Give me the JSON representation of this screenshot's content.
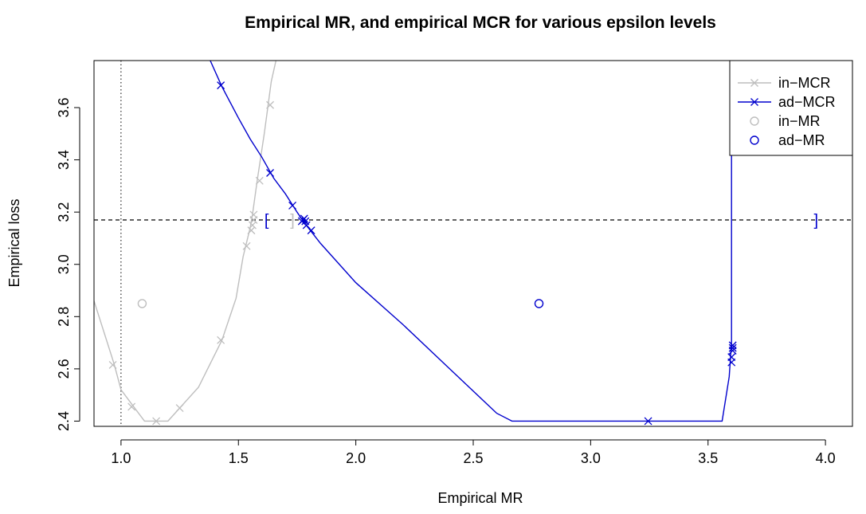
{
  "chart_data": {
    "type": "line",
    "title": "Empirical MR, and empirical MCR for various epsilon levels",
    "xlabel": "Empirical MR",
    "ylabel": "Empirical loss",
    "xlim": [
      0.885,
      4.115
    ],
    "ylim": [
      2.38,
      3.78
    ],
    "xticks": [
      1.0,
      1.5,
      2.0,
      2.5,
      3.0,
      3.5,
      4.0
    ],
    "xtick_labels": [
      "1.0",
      "1.5",
      "2.0",
      "2.5",
      "3.0",
      "3.5",
      "4.0"
    ],
    "yticks": [
      2.4,
      2.6,
      2.8,
      3.0,
      3.2,
      3.4,
      3.6
    ],
    "ytick_labels": [
      "2.4",
      "2.6",
      "2.8",
      "3.0",
      "3.2",
      "3.4",
      "3.6"
    ],
    "grid": false,
    "legend_position": "top-right",
    "colors": {
      "in": "#bebebe",
      "ad": "#0000cd",
      "ref": "#000000"
    },
    "reference_lines": {
      "vertical_dotted_x": 1.0,
      "horizontal_dashed_y": 3.17
    },
    "series": [
      {
        "name": "in-MCR",
        "kind": "line",
        "color": "#bebebe",
        "x": [
          0.885,
          0.97,
          1.0,
          1.05,
          1.1,
          1.15,
          1.2,
          1.25,
          1.33,
          1.43,
          1.49,
          1.52,
          1.55,
          1.56,
          1.58,
          1.61,
          1.64,
          1.66
        ],
        "y": [
          2.86,
          2.62,
          2.52,
          2.46,
          2.4,
          2.4,
          2.4,
          2.45,
          2.53,
          2.71,
          2.87,
          3.03,
          3.14,
          3.19,
          3.32,
          3.5,
          3.7,
          3.78
        ]
      },
      {
        "name": "in-MCR markers",
        "kind": "markers",
        "color": "#bebebe",
        "x": [
          0.965,
          1.045,
          1.15,
          1.25,
          1.425,
          1.535,
          1.555,
          1.56,
          1.565,
          1.565,
          1.59,
          1.635
        ],
        "y": [
          2.615,
          2.455,
          2.4,
          2.45,
          2.71,
          3.07,
          3.13,
          3.15,
          3.17,
          3.19,
          3.32,
          3.61
        ]
      },
      {
        "name": "ad-MCR",
        "kind": "line",
        "color": "#0000cd",
        "x": [
          1.38,
          1.43,
          1.5,
          1.55,
          1.6,
          1.65,
          1.7,
          1.75,
          1.78,
          1.85,
          2.0,
          2.2,
          2.4,
          2.6,
          2.665,
          3.56,
          3.59,
          3.6,
          3.6
        ],
        "y": [
          3.78,
          3.68,
          3.56,
          3.48,
          3.41,
          3.33,
          3.27,
          3.2,
          3.16,
          3.08,
          2.93,
          2.77,
          2.6,
          2.43,
          2.4,
          2.4,
          2.57,
          2.7,
          3.58
        ]
      },
      {
        "name": "ad-MCR markers",
        "kind": "markers",
        "color": "#0000cd",
        "x": [
          1.425,
          1.635,
          1.73,
          1.77,
          1.775,
          1.78,
          1.785,
          1.79,
          1.81,
          3.245,
          3.6,
          3.6,
          3.605,
          3.605,
          3.605
        ],
        "y": [
          3.685,
          3.35,
          3.225,
          3.165,
          3.17,
          3.175,
          3.165,
          3.15,
          3.13,
          2.4,
          2.625,
          2.645,
          2.67,
          2.68,
          2.69
        ]
      },
      {
        "name": "in-MR",
        "kind": "points",
        "color": "#bebebe",
        "x": [
          1.09
        ],
        "y": [
          2.85
        ]
      },
      {
        "name": "ad-MR",
        "kind": "points",
        "color": "#0000cd",
        "x": [
          2.78
        ],
        "y": [
          2.85
        ]
      }
    ],
    "interval_brackets": [
      {
        "symbol": "[",
        "x": 1.62,
        "y": 3.17,
        "color": "#0000cd"
      },
      {
        "symbol": "]",
        "x": 1.73,
        "y": 3.17,
        "color": "#bebebe"
      },
      {
        "symbol": "]",
        "x": 3.96,
        "y": 3.17,
        "color": "#0000cd"
      }
    ],
    "legend": [
      {
        "label": "in−MCR",
        "symbol": "line-x",
        "color": "#bebebe"
      },
      {
        "label": "ad−MCR",
        "symbol": "line-x",
        "color": "#0000cd"
      },
      {
        "label": "in−MR",
        "symbol": "circle",
        "color": "#bebebe"
      },
      {
        "label": "ad−MR",
        "symbol": "circle",
        "color": "#0000cd"
      }
    ]
  }
}
